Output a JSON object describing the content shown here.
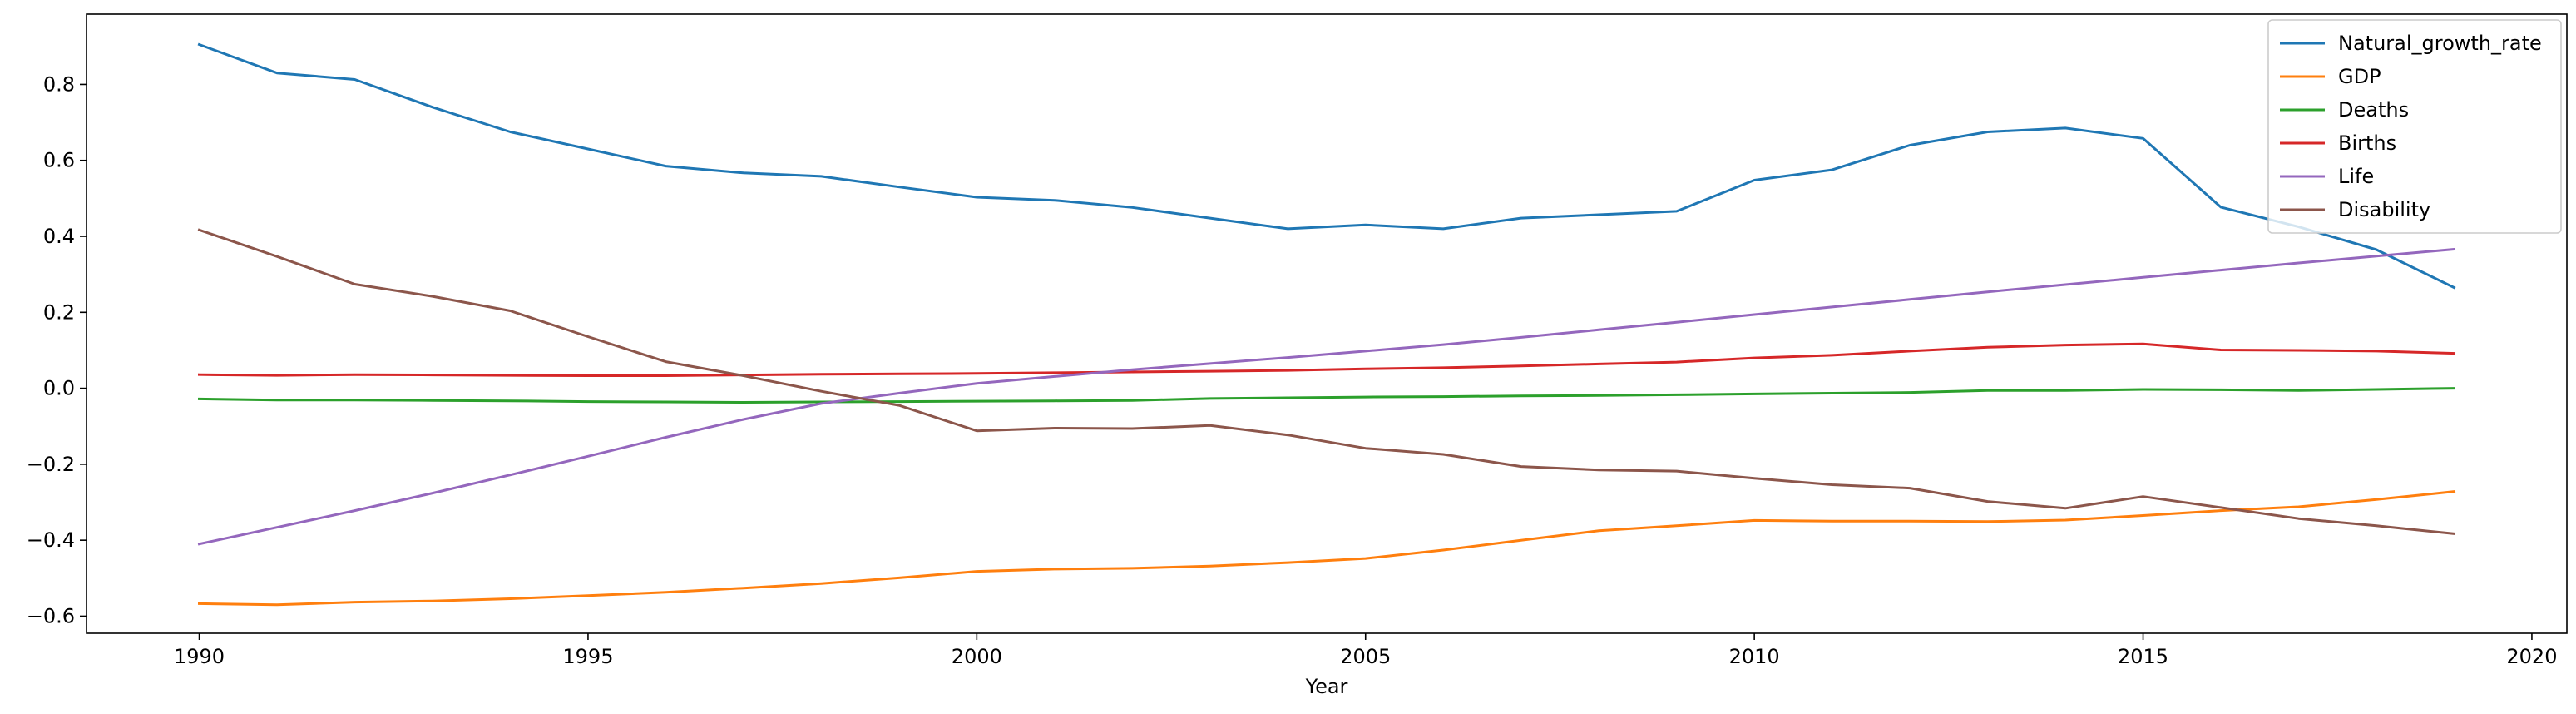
{
  "chart_data": {
    "type": "line",
    "title": "",
    "xlabel": "Year",
    "ylabel": "",
    "xlim": [
      1988.55,
      2020.45
    ],
    "ylim": [
      -0.645,
      0.985
    ],
    "xticks": [
      1990,
      1995,
      2000,
      2005,
      2010,
      2015,
      2020
    ],
    "yticks": [
      -0.6,
      -0.4,
      -0.2,
      0.0,
      0.2,
      0.4,
      0.6,
      0.8
    ],
    "ytick_labels": [
      "−0.6",
      "−0.4",
      "−0.2",
      "0.0",
      "0.2",
      "0.4",
      "0.6",
      "0.8"
    ],
    "grid": false,
    "legend_position": "top-right",
    "x": [
      1990,
      1991,
      1992,
      1993,
      1994,
      1995,
      1996,
      1997,
      1998,
      1999,
      2000,
      2001,
      2002,
      2003,
      2004,
      2005,
      2006,
      2007,
      2008,
      2009,
      2010,
      2011,
      2012,
      2013,
      2014,
      2015,
      2016,
      2017,
      2018,
      2019
    ],
    "series": [
      {
        "name": "Natural_growth_rate",
        "color": "#1f77b4",
        "values": [
          0.905,
          0.83,
          0.813,
          0.74,
          0.675,
          0.63,
          0.585,
          0.567,
          0.558,
          0.53,
          0.503,
          0.495,
          0.476,
          0.448,
          0.42,
          0.43,
          0.42,
          0.448,
          0.457,
          0.466,
          0.548,
          0.575,
          0.64,
          0.675,
          0.685,
          0.658,
          0.477,
          0.425,
          0.365,
          0.265
        ]
      },
      {
        "name": "GDP",
        "color": "#ff7f0e",
        "values": [
          -0.567,
          -0.57,
          -0.563,
          -0.56,
          -0.554,
          -0.546,
          -0.537,
          -0.526,
          -0.514,
          -0.499,
          -0.482,
          -0.476,
          -0.474,
          -0.468,
          -0.459,
          -0.448,
          -0.426,
          -0.4,
          -0.375,
          -0.362,
          -0.348,
          -0.35,
          -0.35,
          -0.351,
          -0.347,
          -0.335,
          -0.322,
          -0.312,
          -0.293,
          -0.272
        ]
      },
      {
        "name": "Deaths",
        "color": "#2ca02c",
        "values": [
          -0.028,
          -0.031,
          -0.031,
          -0.032,
          -0.033,
          -0.035,
          -0.036,
          -0.037,
          -0.036,
          -0.035,
          -0.034,
          -0.033,
          -0.032,
          -0.027,
          -0.025,
          -0.023,
          -0.022,
          -0.02,
          -0.019,
          -0.017,
          -0.015,
          -0.013,
          -0.011,
          -0.006,
          -0.006,
          -0.003,
          -0.004,
          -0.006,
          -0.003,
          0.0
        ]
      },
      {
        "name": "Births",
        "color": "#d62728",
        "values": [
          0.036,
          0.034,
          0.036,
          0.035,
          0.034,
          0.033,
          0.033,
          0.035,
          0.037,
          0.038,
          0.039,
          0.041,
          0.043,
          0.045,
          0.047,
          0.051,
          0.054,
          0.059,
          0.064,
          0.069,
          0.08,
          0.087,
          0.098,
          0.108,
          0.114,
          0.117,
          0.101,
          0.1,
          0.098,
          0.092
        ]
      },
      {
        "name": "Life",
        "color": "#9467bd",
        "values": [
          -0.41,
          -0.366,
          -0.322,
          -0.276,
          -0.228,
          -0.179,
          -0.129,
          -0.082,
          -0.04,
          -0.013,
          0.013,
          0.031,
          0.049,
          0.065,
          0.081,
          0.098,
          0.115,
          0.134,
          0.154,
          0.174,
          0.194,
          0.214,
          0.234,
          0.254,
          0.273,
          0.292,
          0.311,
          0.33,
          0.348,
          0.366
        ]
      },
      {
        "name": "Disability",
        "color": "#8c564b",
        "values": [
          0.417,
          0.347,
          0.274,
          0.242,
          0.204,
          0.136,
          0.07,
          0.033,
          -0.008,
          -0.045,
          -0.112,
          -0.105,
          -0.106,
          -0.098,
          -0.123,
          -0.158,
          -0.174,
          -0.206,
          -0.215,
          -0.218,
          -0.237,
          -0.254,
          -0.263,
          -0.298,
          -0.316,
          -0.285,
          -0.314,
          -0.343,
          -0.362,
          -0.383
        ]
      }
    ]
  }
}
